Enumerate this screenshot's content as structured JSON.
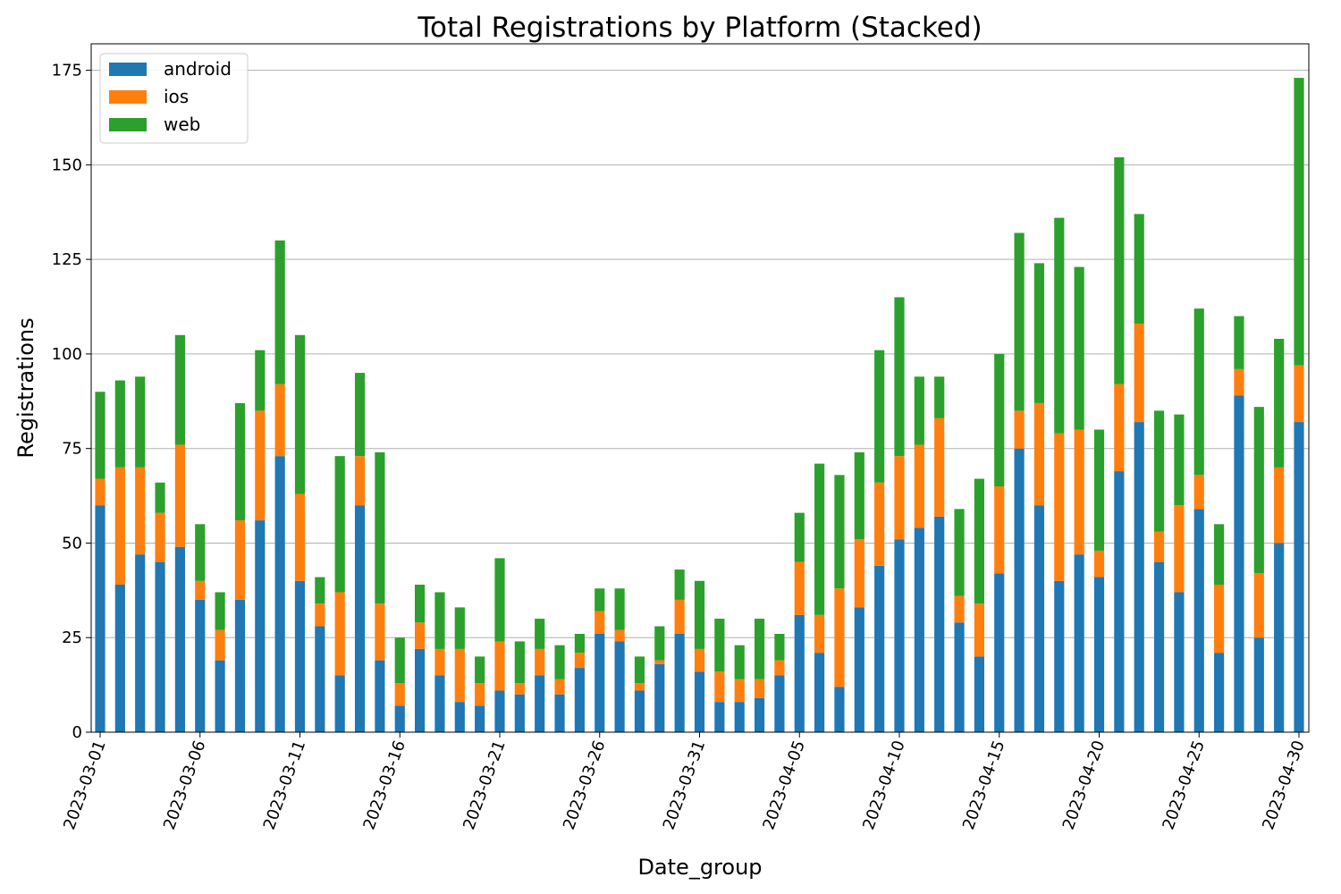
{
  "chart_data": {
    "type": "bar",
    "stacked": true,
    "title": "Total Registrations by Platform (Stacked)",
    "xlabel": "Date_group",
    "ylabel": "Registrations",
    "ylim": [
      0,
      182
    ],
    "yticks": [
      0,
      25,
      50,
      75,
      100,
      125,
      150,
      175
    ],
    "grid": "y",
    "legend_position": "top-left",
    "categories": [
      "2023-03-01",
      "2023-03-02",
      "2023-03-03",
      "2023-03-04",
      "2023-03-05",
      "2023-03-06",
      "2023-03-07",
      "2023-03-08",
      "2023-03-09",
      "2023-03-10",
      "2023-03-11",
      "2023-03-12",
      "2023-03-13",
      "2023-03-14",
      "2023-03-15",
      "2023-03-16",
      "2023-03-17",
      "2023-03-18",
      "2023-03-19",
      "2023-03-20",
      "2023-03-21",
      "2023-03-22",
      "2023-03-23",
      "2023-03-24",
      "2023-03-25",
      "2023-03-26",
      "2023-03-27",
      "2023-03-28",
      "2023-03-29",
      "2023-03-30",
      "2023-03-31",
      "2023-04-01",
      "2023-04-02",
      "2023-04-03",
      "2023-04-04",
      "2023-04-05",
      "2023-04-06",
      "2023-04-07",
      "2023-04-08",
      "2023-04-09",
      "2023-04-10",
      "2023-04-11",
      "2023-04-12",
      "2023-04-13",
      "2023-04-14",
      "2023-04-15",
      "2023-04-16",
      "2023-04-17",
      "2023-04-18",
      "2023-04-19",
      "2023-04-20",
      "2023-04-21",
      "2023-04-22",
      "2023-04-23",
      "2023-04-24",
      "2023-04-25",
      "2023-04-26",
      "2023-04-27",
      "2023-04-28",
      "2023-04-29",
      "2023-04-30"
    ],
    "tick_labels": [
      "2023-03-01",
      "2023-03-06",
      "2023-03-11",
      "2023-03-16",
      "2023-03-21",
      "2023-03-26",
      "2023-03-31",
      "2023-04-05",
      "2023-04-10",
      "2023-04-15",
      "2023-04-20",
      "2023-04-25",
      "2023-04-30"
    ],
    "series": [
      {
        "name": "android",
        "color": "#1f77b4",
        "values": [
          60,
          39,
          47,
          45,
          49,
          35,
          19,
          35,
          56,
          73,
          40,
          28,
          15,
          60,
          19,
          7,
          22,
          15,
          8,
          7,
          11,
          10,
          15,
          10,
          17,
          26,
          24,
          11,
          18,
          26,
          16,
          8,
          8,
          9,
          15,
          31,
          21,
          12,
          33,
          44,
          51,
          54,
          57,
          29,
          20,
          42,
          75,
          60,
          40,
          47,
          41,
          69,
          82,
          45,
          37,
          59,
          21,
          89,
          25,
          50,
          82
        ]
      },
      {
        "name": "ios",
        "color": "#ff7f0e",
        "values": [
          7,
          31,
          23,
          13,
          27,
          5,
          8,
          21,
          29,
          19,
          23,
          6,
          22,
          13,
          15,
          6,
          7,
          7,
          14,
          6,
          13,
          3,
          7,
          4,
          4,
          6,
          3,
          2,
          1,
          9,
          6,
          8,
          6,
          5,
          4,
          14,
          10,
          26,
          18,
          22,
          22,
          22,
          26,
          7,
          14,
          23,
          10,
          27,
          39,
          33,
          7,
          23,
          26,
          8,
          23,
          9,
          18,
          7,
          17,
          20,
          15
        ]
      },
      {
        "name": "web",
        "color": "#2ca02c",
        "values": [
          23,
          23,
          24,
          8,
          29,
          15,
          10,
          31,
          16,
          38,
          42,
          7,
          36,
          22,
          40,
          12,
          10,
          15,
          11,
          7,
          22,
          11,
          8,
          9,
          5,
          6,
          11,
          7,
          9,
          8,
          18,
          14,
          9,
          16,
          7,
          13,
          40,
          30,
          23,
          35,
          42,
          18,
          11,
          23,
          33,
          35,
          47,
          37,
          57,
          43,
          32,
          60,
          29,
          32,
          24,
          44,
          16,
          14,
          44,
          34,
          76
        ]
      }
    ]
  }
}
